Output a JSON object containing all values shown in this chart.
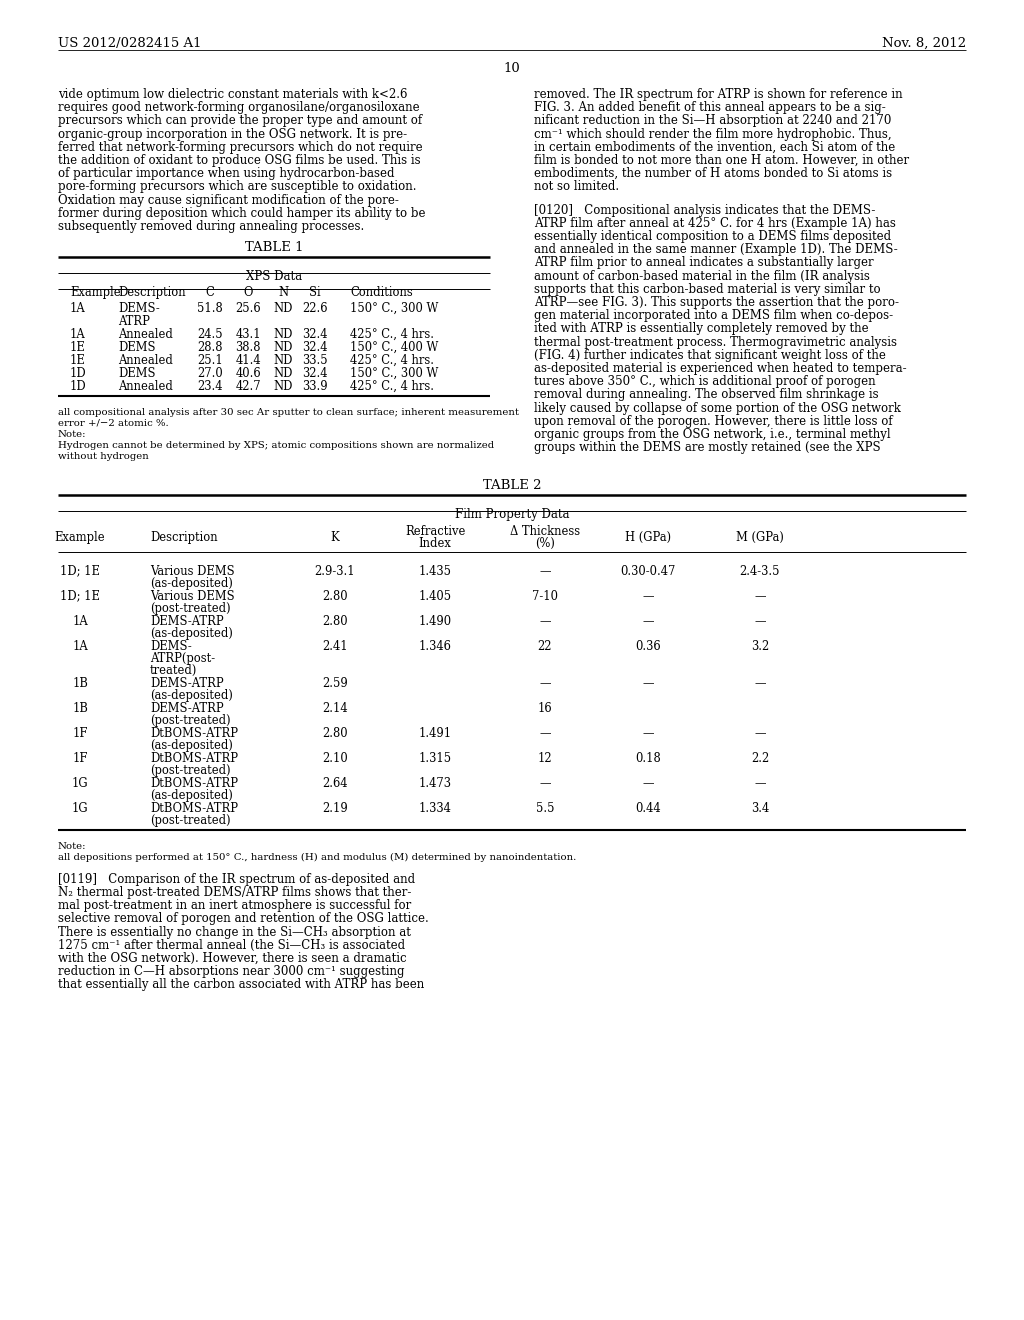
{
  "page_number": "10",
  "header_left": "US 2012/0282415 A1",
  "header_right": "Nov. 8, 2012",
  "background_color": "#ffffff",
  "left_column_text": [
    "vide optimum low dielectric constant materials with k<2.6",
    "requires good network-forming organosilane/organosiloxane",
    "precursors which can provide the proper type and amount of",
    "organic-group incorporation in the OSG network. It is pre-",
    "ferred that network-forming precursors which do not require",
    "the addition of oxidant to produce OSG films be used. This is",
    "of particular importance when using hydrocarbon-based",
    "pore-forming precursors which are susceptible to oxidation.",
    "Oxidation may cause significant modification of the pore-",
    "former during deposition which could hamper its ability to be",
    "subsequently removed during annealing processes."
  ],
  "right_column_text_top": [
    "removed. The IR spectrum for ATRP is shown for reference in",
    "FIG. 3. An added benefit of this anneal appears to be a sig-",
    "nificant reduction in the Si—H absorption at 2240 and 2170",
    "cm⁻¹ which should render the film more hydrophobic. Thus,",
    "in certain embodiments of the invention, each Si atom of the",
    "film is bonded to not more than one H atom. However, in other",
    "embodiments, the number of H atoms bonded to Si atoms is",
    "not so limited."
  ],
  "right_column_para0120": [
    "[0120]   Compositional analysis indicates that the DEMS-",
    "ATRP film after anneal at 425° C. for 4 hrs (Example 1A) has",
    "essentially identical composition to a DEMS films deposited",
    "and annealed in the same manner (Example 1D). The DEMS-",
    "ATRP film prior to anneal indicates a substantially larger",
    "amount of carbon-based material in the film (IR analysis",
    "supports that this carbon-based material is very similar to",
    "ATRP—see FIG. 3). This supports the assertion that the poro-",
    "gen material incorporated into a DEMS film when co-depos-",
    "ited with ATRP is essentially completely removed by the",
    "thermal post-treatment process. Thermogravimetric analysis",
    "(FIG. 4) further indicates that significant weight loss of the",
    "as-deposited material is experienced when heated to tempera-",
    "tures above 350° C., which is additional proof of porogen",
    "removal during annealing. The observed film shrinkage is",
    "likely caused by collapse of some portion of the OSG network",
    "upon removal of the porogen. However, there is little loss of",
    "organic groups from the OSG network, i.e., terminal methyl",
    "groups within the DEMS are mostly retained (see the XPS"
  ],
  "table1_title": "TABLE 1",
  "table1_subtitle": "XPS Data",
  "table1_headers": [
    "Example",
    "Description",
    "C",
    "O",
    "N",
    "Si",
    "Conditions"
  ],
  "table1_rows": [
    [
      "1A",
      "DEMS-\nATRP",
      "51.8",
      "25.6",
      "ND",
      "22.6",
      "150° C., 300 W"
    ],
    [
      "1A",
      "Annealed",
      "24.5",
      "43.1",
      "ND",
      "32.4",
      "425° C., 4 hrs."
    ],
    [
      "1E",
      "DEMS",
      "28.8",
      "38.8",
      "ND",
      "32.4",
      "150° C., 400 W"
    ],
    [
      "1E",
      "Annealed",
      "25.1",
      "41.4",
      "ND",
      "33.5",
      "425° C., 4 hrs."
    ],
    [
      "1D",
      "DEMS",
      "27.0",
      "40.6",
      "ND",
      "32.4",
      "150° C., 300 W"
    ],
    [
      "1D",
      "Annealed",
      "23.4",
      "42.7",
      "ND",
      "33.9",
      "425° C., 4 hrs."
    ]
  ],
  "table1_footnote1": "all compositional analysis after 30 sec Ar sputter to clean surface; inherent measurement",
  "table1_footnote2": "error +/−2 atomic %.",
  "table1_footnote3": "Note:",
  "table1_footnote4": "Hydrogen cannot be determined by XPS; atomic compositions shown are normalized",
  "table1_footnote5": "without hydrogen",
  "table2_title": "TABLE 2",
  "table2_subtitle": "Film Property Data",
  "table2_headers_row1": [
    "",
    "",
    "",
    "Refractive",
    "Δ Thickness",
    "",
    ""
  ],
  "table2_headers_row2": [
    "Example",
    "Description",
    "K",
    "Index",
    "(%)",
    "H (GPa)",
    "M (GPa)"
  ],
  "table2_rows": [
    [
      "1D; 1E",
      "Various DEMS\n(as-deposited)",
      "2.9-3.1",
      "1.435",
      "—",
      "0.30-0.47",
      "2.4-3.5"
    ],
    [
      "1D; 1E",
      "Various DEMS\n(post-treated)",
      "2.80",
      "1.405",
      "7-10",
      "—",
      "—"
    ],
    [
      "1A",
      "DEMS-ATRP\n(as-deposited)",
      "2.80",
      "1.490",
      "—",
      "—",
      "—"
    ],
    [
      "1A",
      "DEMS-\nATRP(post-\ntreated)",
      "2.41",
      "1.346",
      "22",
      "0.36",
      "3.2"
    ],
    [
      "1B",
      "DEMS-ATRP\n(as-deposited)",
      "2.59",
      "",
      "—",
      "—",
      "—"
    ],
    [
      "1B",
      "DEMS-ATRP\n(post-treated)",
      "2.14",
      "",
      "16",
      "",
      ""
    ],
    [
      "1F",
      "DtBOMS-ATRP\n(as-deposited)",
      "2.80",
      "1.491",
      "—",
      "—",
      "—"
    ],
    [
      "1F",
      "DtBOMS-ATRP\n(post-treated)",
      "2.10",
      "1.315",
      "12",
      "0.18",
      "2.2"
    ],
    [
      "1G",
      "DtBOMS-ATRP\n(as-deposited)",
      "2.64",
      "1.473",
      "—",
      "—",
      "—"
    ],
    [
      "1G",
      "DtBOMS-ATRP\n(post-treated)",
      "2.19",
      "1.334",
      "5.5",
      "0.44",
      "3.4"
    ]
  ],
  "table2_footnote1": "Note:",
  "table2_footnote2": "all depositions performed at 150° C., hardness (H) and modulus (M) determined by nanoindentation.",
  "para0119_lines": [
    "[0119]   Comparison of the IR spectrum of as-deposited and",
    "N₂ thermal post-treated DEMS/ATRP films shows that ther-",
    "mal post-treatment in an inert atmosphere is successful for",
    "selective removal of porogen and retention of the OSG lattice.",
    "There is essentially no change in the Si—CH₃ absorption at",
    "1275 cm⁻¹ after thermal anneal (the Si—CH₃ is associated",
    "with the OSG network). However, there is seen a dramatic",
    "reduction in C—H absorptions near 3000 cm⁻¹ suggesting",
    "that essentially all the carbon associated with ATRP has been"
  ]
}
